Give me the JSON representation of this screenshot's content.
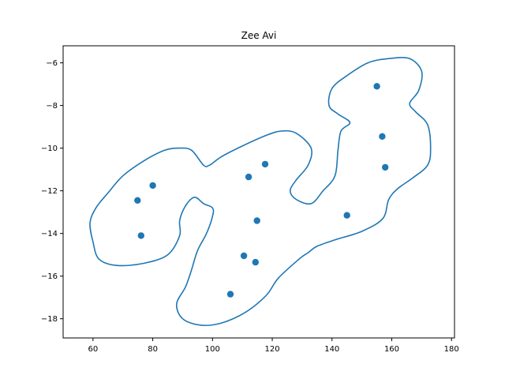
{
  "chart_data": {
    "type": "scatter",
    "title": "Zee Avi",
    "xlabel": "",
    "ylabel": "",
    "xlim": [
      50,
      181
    ],
    "ylim": [
      -18.9,
      -5.2
    ],
    "xticks": [
      60,
      80,
      100,
      120,
      140,
      160,
      180
    ],
    "yticks": [
      -6,
      -8,
      -10,
      -12,
      -14,
      -16,
      -18
    ],
    "xtick_labels": [
      "60",
      "80",
      "100",
      "120",
      "140",
      "160",
      "180"
    ],
    "ytick_labels": [
      "−6",
      "−8",
      "−10",
      "−12",
      "−14",
      "−16",
      "−18"
    ],
    "grid": false,
    "color": "#1f77b4",
    "points": [
      {
        "x": 155.0,
        "y": -7.1
      },
      {
        "x": 156.8,
        "y": -9.45
      },
      {
        "x": 157.8,
        "y": -10.9
      },
      {
        "x": 145.0,
        "y": -13.15
      },
      {
        "x": 117.6,
        "y": -10.75
      },
      {
        "x": 112.1,
        "y": -11.35
      },
      {
        "x": 114.9,
        "y": -13.4
      },
      {
        "x": 110.5,
        "y": -15.05
      },
      {
        "x": 114.4,
        "y": -15.35
      },
      {
        "x": 106.0,
        "y": -16.85
      },
      {
        "x": 80.0,
        "y": -11.75
      },
      {
        "x": 74.9,
        "y": -12.45
      },
      {
        "x": 76.1,
        "y": -14.1
      }
    ],
    "outline": [
      [
        93,
        -10.1
      ],
      [
        97,
        -10.8
      ],
      [
        99,
        -10.8
      ],
      [
        103,
        -10.4
      ],
      [
        110,
        -9.9
      ],
      [
        118,
        -9.4
      ],
      [
        123,
        -9.2
      ],
      [
        128,
        -9.3
      ],
      [
        133,
        -10.0
      ],
      [
        132,
        -10.8
      ],
      [
        128,
        -11.5
      ],
      [
        126,
        -12.0
      ],
      [
        128,
        -12.4
      ],
      [
        133,
        -12.6
      ],
      [
        137,
        -12.0
      ],
      [
        141,
        -11.3
      ],
      [
        142,
        -10.1
      ],
      [
        143,
        -9.2
      ],
      [
        146,
        -8.8
      ],
      [
        142,
        -8.4
      ],
      [
        139,
        -8.0
      ],
      [
        140,
        -7.2
      ],
      [
        145,
        -6.6
      ],
      [
        152,
        -6.0
      ],
      [
        159,
        -5.8
      ],
      [
        166,
        -5.8
      ],
      [
        170,
        -6.4
      ],
      [
        169,
        -7.3
      ],
      [
        166,
        -7.9
      ],
      [
        168,
        -8.3
      ],
      [
        172,
        -8.9
      ],
      [
        173,
        -10.0
      ],
      [
        172,
        -10.8
      ],
      [
        167,
        -11.4
      ],
      [
        162,
        -11.9
      ],
      [
        159,
        -12.4
      ],
      [
        157,
        -13.3
      ],
      [
        150,
        -13.9
      ],
      [
        141,
        -14.3
      ],
      [
        135,
        -14.6
      ],
      [
        132,
        -14.9
      ],
      [
        129,
        -15.2
      ],
      [
        122,
        -16.1
      ],
      [
        118,
        -16.9
      ],
      [
        111,
        -17.7
      ],
      [
        103,
        -18.2
      ],
      [
        96,
        -18.3
      ],
      [
        90,
        -18.0
      ],
      [
        88,
        -17.3
      ],
      [
        91,
        -16.5
      ],
      [
        93,
        -15.7
      ],
      [
        95,
        -14.8
      ],
      [
        98,
        -14.0
      ],
      [
        100,
        -13.2
      ],
      [
        100,
        -12.8
      ],
      [
        97,
        -12.6
      ],
      [
        94,
        -12.3
      ],
      [
        91,
        -12.7
      ],
      [
        89,
        -13.4
      ],
      [
        89,
        -14.1
      ],
      [
        85,
        -15.0
      ],
      [
        77,
        -15.4
      ],
      [
        68,
        -15.5
      ],
      [
        62,
        -15.2
      ],
      [
        60,
        -14.4
      ],
      [
        59,
        -13.5
      ],
      [
        61,
        -12.8
      ],
      [
        65,
        -12.1
      ],
      [
        70,
        -11.3
      ],
      [
        77,
        -10.6
      ],
      [
        84,
        -10.1
      ],
      [
        89,
        -10.0
      ]
    ]
  }
}
